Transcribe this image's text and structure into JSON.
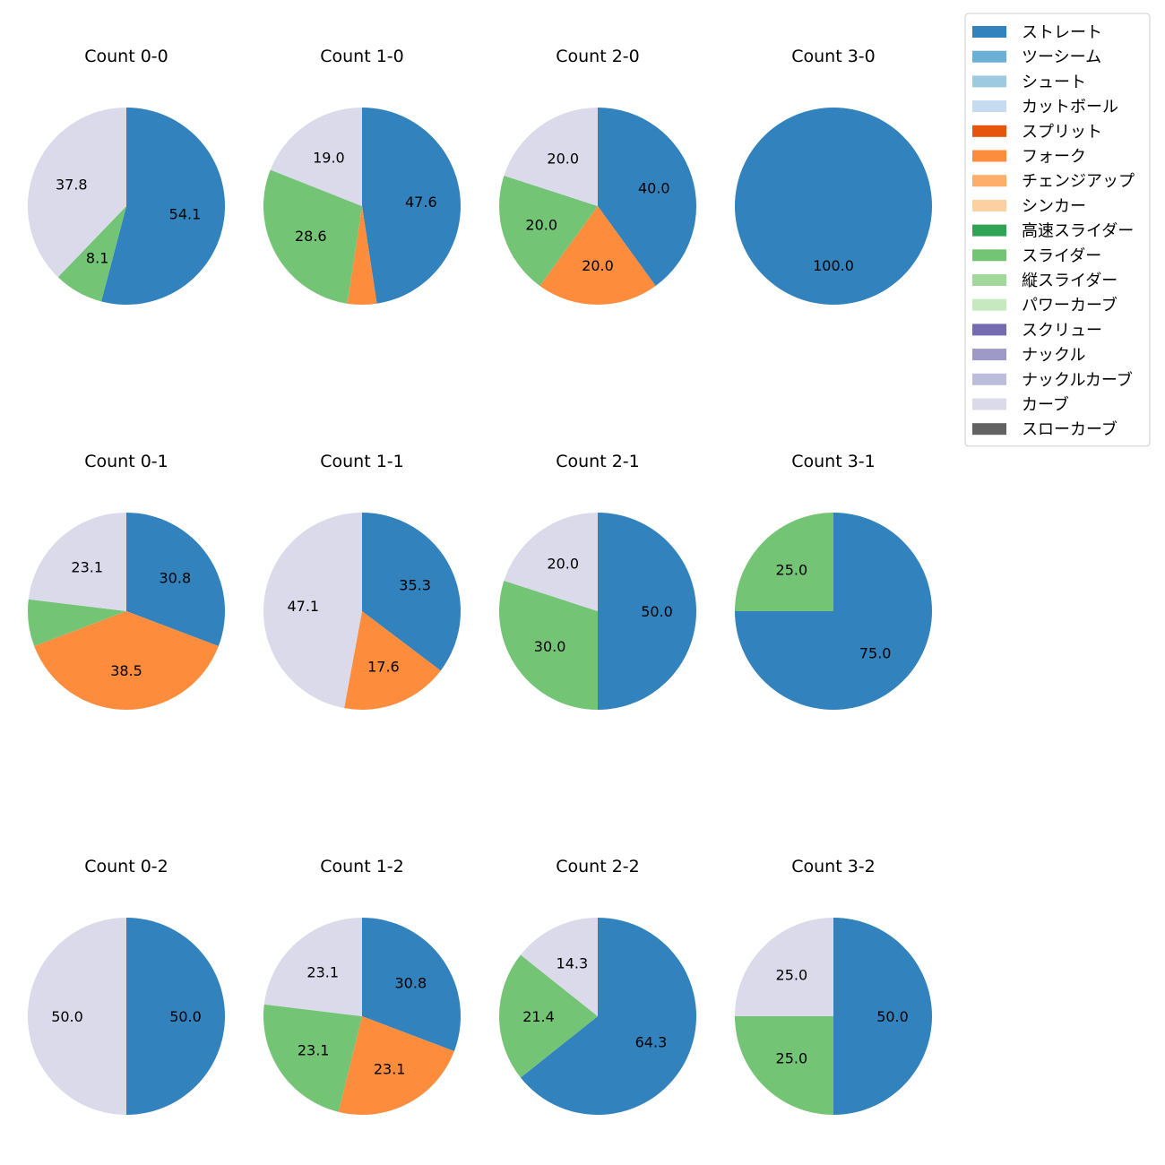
{
  "chart_data": {
    "type": "pie",
    "legend": {
      "placement": "top-right",
      "entries": [
        {
          "name": "ストレート",
          "color": "#3182bd"
        },
        {
          "name": "ツーシーム",
          "color": "#6baed6"
        },
        {
          "name": "シュート",
          "color": "#9ecae1"
        },
        {
          "name": "カットボール",
          "color": "#c6dbef"
        },
        {
          "name": "スプリット",
          "color": "#e6550d"
        },
        {
          "name": "フォーク",
          "color": "#fd8d3c"
        },
        {
          "name": "チェンジアップ",
          "color": "#fdae6b"
        },
        {
          "name": "シンカー",
          "color": "#fdd0a2"
        },
        {
          "name": "高速スライダー",
          "color": "#31a354"
        },
        {
          "name": "スライダー",
          "color": "#74c476"
        },
        {
          "name": "縦スライダー",
          "color": "#a1d99b"
        },
        {
          "name": "パワーカーブ",
          "color": "#c7e9c0"
        },
        {
          "name": "スクリュー",
          "color": "#756bb1"
        },
        {
          "name": "ナックル",
          "color": "#9e9ac8"
        },
        {
          "name": "ナックルカーブ",
          "color": "#bcbddc"
        },
        {
          "name": "カーブ",
          "color": "#dadaeb"
        },
        {
          "name": "スローカーブ",
          "color": "#636363"
        }
      ]
    },
    "pies": [
      {
        "title": "Count 0-0",
        "slices": [
          {
            "series": "ストレート",
            "value": 54.1,
            "label": "54.1"
          },
          {
            "series": "スライダー",
            "value": 8.1,
            "label": "8.1"
          },
          {
            "series": "カーブ",
            "value": 37.8,
            "label": "37.8"
          }
        ]
      },
      {
        "title": "Count 1-0",
        "slices": [
          {
            "series": "ストレート",
            "value": 47.6,
            "label": "47.6"
          },
          {
            "series": "フォーク",
            "value": 4.8,
            "label": ""
          },
          {
            "series": "スライダー",
            "value": 28.6,
            "label": "28.6"
          },
          {
            "series": "カーブ",
            "value": 19.0,
            "label": "19.0"
          }
        ]
      },
      {
        "title": "Count 2-0",
        "slices": [
          {
            "series": "ストレート",
            "value": 40.0,
            "label": "40.0"
          },
          {
            "series": "フォーク",
            "value": 20.0,
            "label": "20.0"
          },
          {
            "series": "スライダー",
            "value": 20.0,
            "label": "20.0"
          },
          {
            "series": "カーブ",
            "value": 20.0,
            "label": "20.0"
          }
        ]
      },
      {
        "title": "Count 3-0",
        "slices": [
          {
            "series": "ストレート",
            "value": 100.0,
            "label": "100.0"
          }
        ]
      },
      {
        "title": "Count 0-1",
        "slices": [
          {
            "series": "ストレート",
            "value": 30.8,
            "label": "30.8"
          },
          {
            "series": "フォーク",
            "value": 38.5,
            "label": "38.5"
          },
          {
            "series": "スライダー",
            "value": 7.7,
            "label": ""
          },
          {
            "series": "カーブ",
            "value": 23.1,
            "label": "23.1"
          }
        ]
      },
      {
        "title": "Count 1-1",
        "slices": [
          {
            "series": "ストレート",
            "value": 35.3,
            "label": "35.3"
          },
          {
            "series": "フォーク",
            "value": 17.6,
            "label": "17.6"
          },
          {
            "series": "カーブ",
            "value": 47.1,
            "label": "47.1"
          }
        ]
      },
      {
        "title": "Count 2-1",
        "slices": [
          {
            "series": "ストレート",
            "value": 50.0,
            "label": "50.0"
          },
          {
            "series": "スライダー",
            "value": 30.0,
            "label": "30.0"
          },
          {
            "series": "カーブ",
            "value": 20.0,
            "label": "20.0"
          }
        ]
      },
      {
        "title": "Count 3-1",
        "slices": [
          {
            "series": "ストレート",
            "value": 75.0,
            "label": "75.0"
          },
          {
            "series": "スライダー",
            "value": 25.0,
            "label": "25.0"
          }
        ]
      },
      {
        "title": "Count 0-2",
        "slices": [
          {
            "series": "ストレート",
            "value": 50.0,
            "label": "50.0"
          },
          {
            "series": "カーブ",
            "value": 50.0,
            "label": "50.0"
          }
        ]
      },
      {
        "title": "Count 1-2",
        "slices": [
          {
            "series": "ストレート",
            "value": 30.8,
            "label": "30.8"
          },
          {
            "series": "フォーク",
            "value": 23.1,
            "label": "23.1"
          },
          {
            "series": "スライダー",
            "value": 23.1,
            "label": "23.1"
          },
          {
            "series": "カーブ",
            "value": 23.1,
            "label": "23.1"
          }
        ]
      },
      {
        "title": "Count 2-2",
        "slices": [
          {
            "series": "ストレート",
            "value": 64.3,
            "label": "64.3"
          },
          {
            "series": "スライダー",
            "value": 21.4,
            "label": "21.4"
          },
          {
            "series": "カーブ",
            "value": 14.3,
            "label": "14.3"
          }
        ]
      },
      {
        "title": "Count 3-2",
        "slices": [
          {
            "series": "ストレート",
            "value": 50.0,
            "label": "50.0"
          },
          {
            "series": "スライダー",
            "value": 25.0,
            "label": "25.0"
          },
          {
            "series": "カーブ",
            "value": 25.0,
            "label": "25.0"
          }
        ]
      }
    ]
  }
}
